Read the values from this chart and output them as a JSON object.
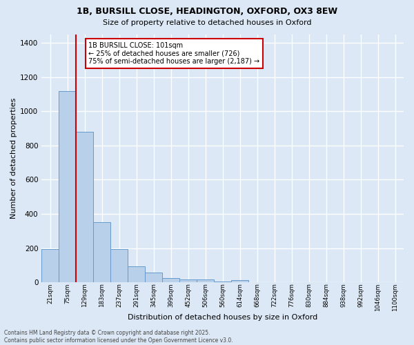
{
  "title_line1": "1B, BURSILL CLOSE, HEADINGTON, OXFORD, OX3 8EW",
  "title_line2": "Size of property relative to detached houses in Oxford",
  "xlabel": "Distribution of detached houses by size in Oxford",
  "ylabel": "Number of detached properties",
  "categories": [
    "21sqm",
    "75sqm",
    "129sqm",
    "183sqm",
    "237sqm",
    "291sqm",
    "345sqm",
    "399sqm",
    "452sqm",
    "506sqm",
    "560sqm",
    "614sqm",
    "668sqm",
    "722sqm",
    "776sqm",
    "830sqm",
    "884sqm",
    "938sqm",
    "992sqm",
    "1046sqm",
    "1100sqm"
  ],
  "values": [
    196,
    1120,
    880,
    350,
    196,
    93,
    58,
    25,
    18,
    16,
    5,
    14,
    0,
    0,
    0,
    0,
    0,
    0,
    0,
    0,
    0
  ],
  "bar_color": "#b8d0ea",
  "bar_edge_color": "#6699cc",
  "vline_x": 1.5,
  "vline_color": "#cc0000",
  "annotation_text": "1B BURSILL CLOSE: 101sqm\n← 25% of detached houses are smaller (726)\n75% of semi-detached houses are larger (2,187) →",
  "annotation_box_color": "#ffffff",
  "annotation_box_edge": "#cc0000",
  "bg_color": "#dce8f5",
  "grid_color": "#ffffff",
  "footer_line1": "Contains HM Land Registry data © Crown copyright and database right 2025.",
  "footer_line2": "Contains public sector information licensed under the Open Government Licence v3.0.",
  "ylim": [
    0,
    1450
  ],
  "yticks": [
    0,
    200,
    400,
    600,
    800,
    1000,
    1200,
    1400
  ]
}
